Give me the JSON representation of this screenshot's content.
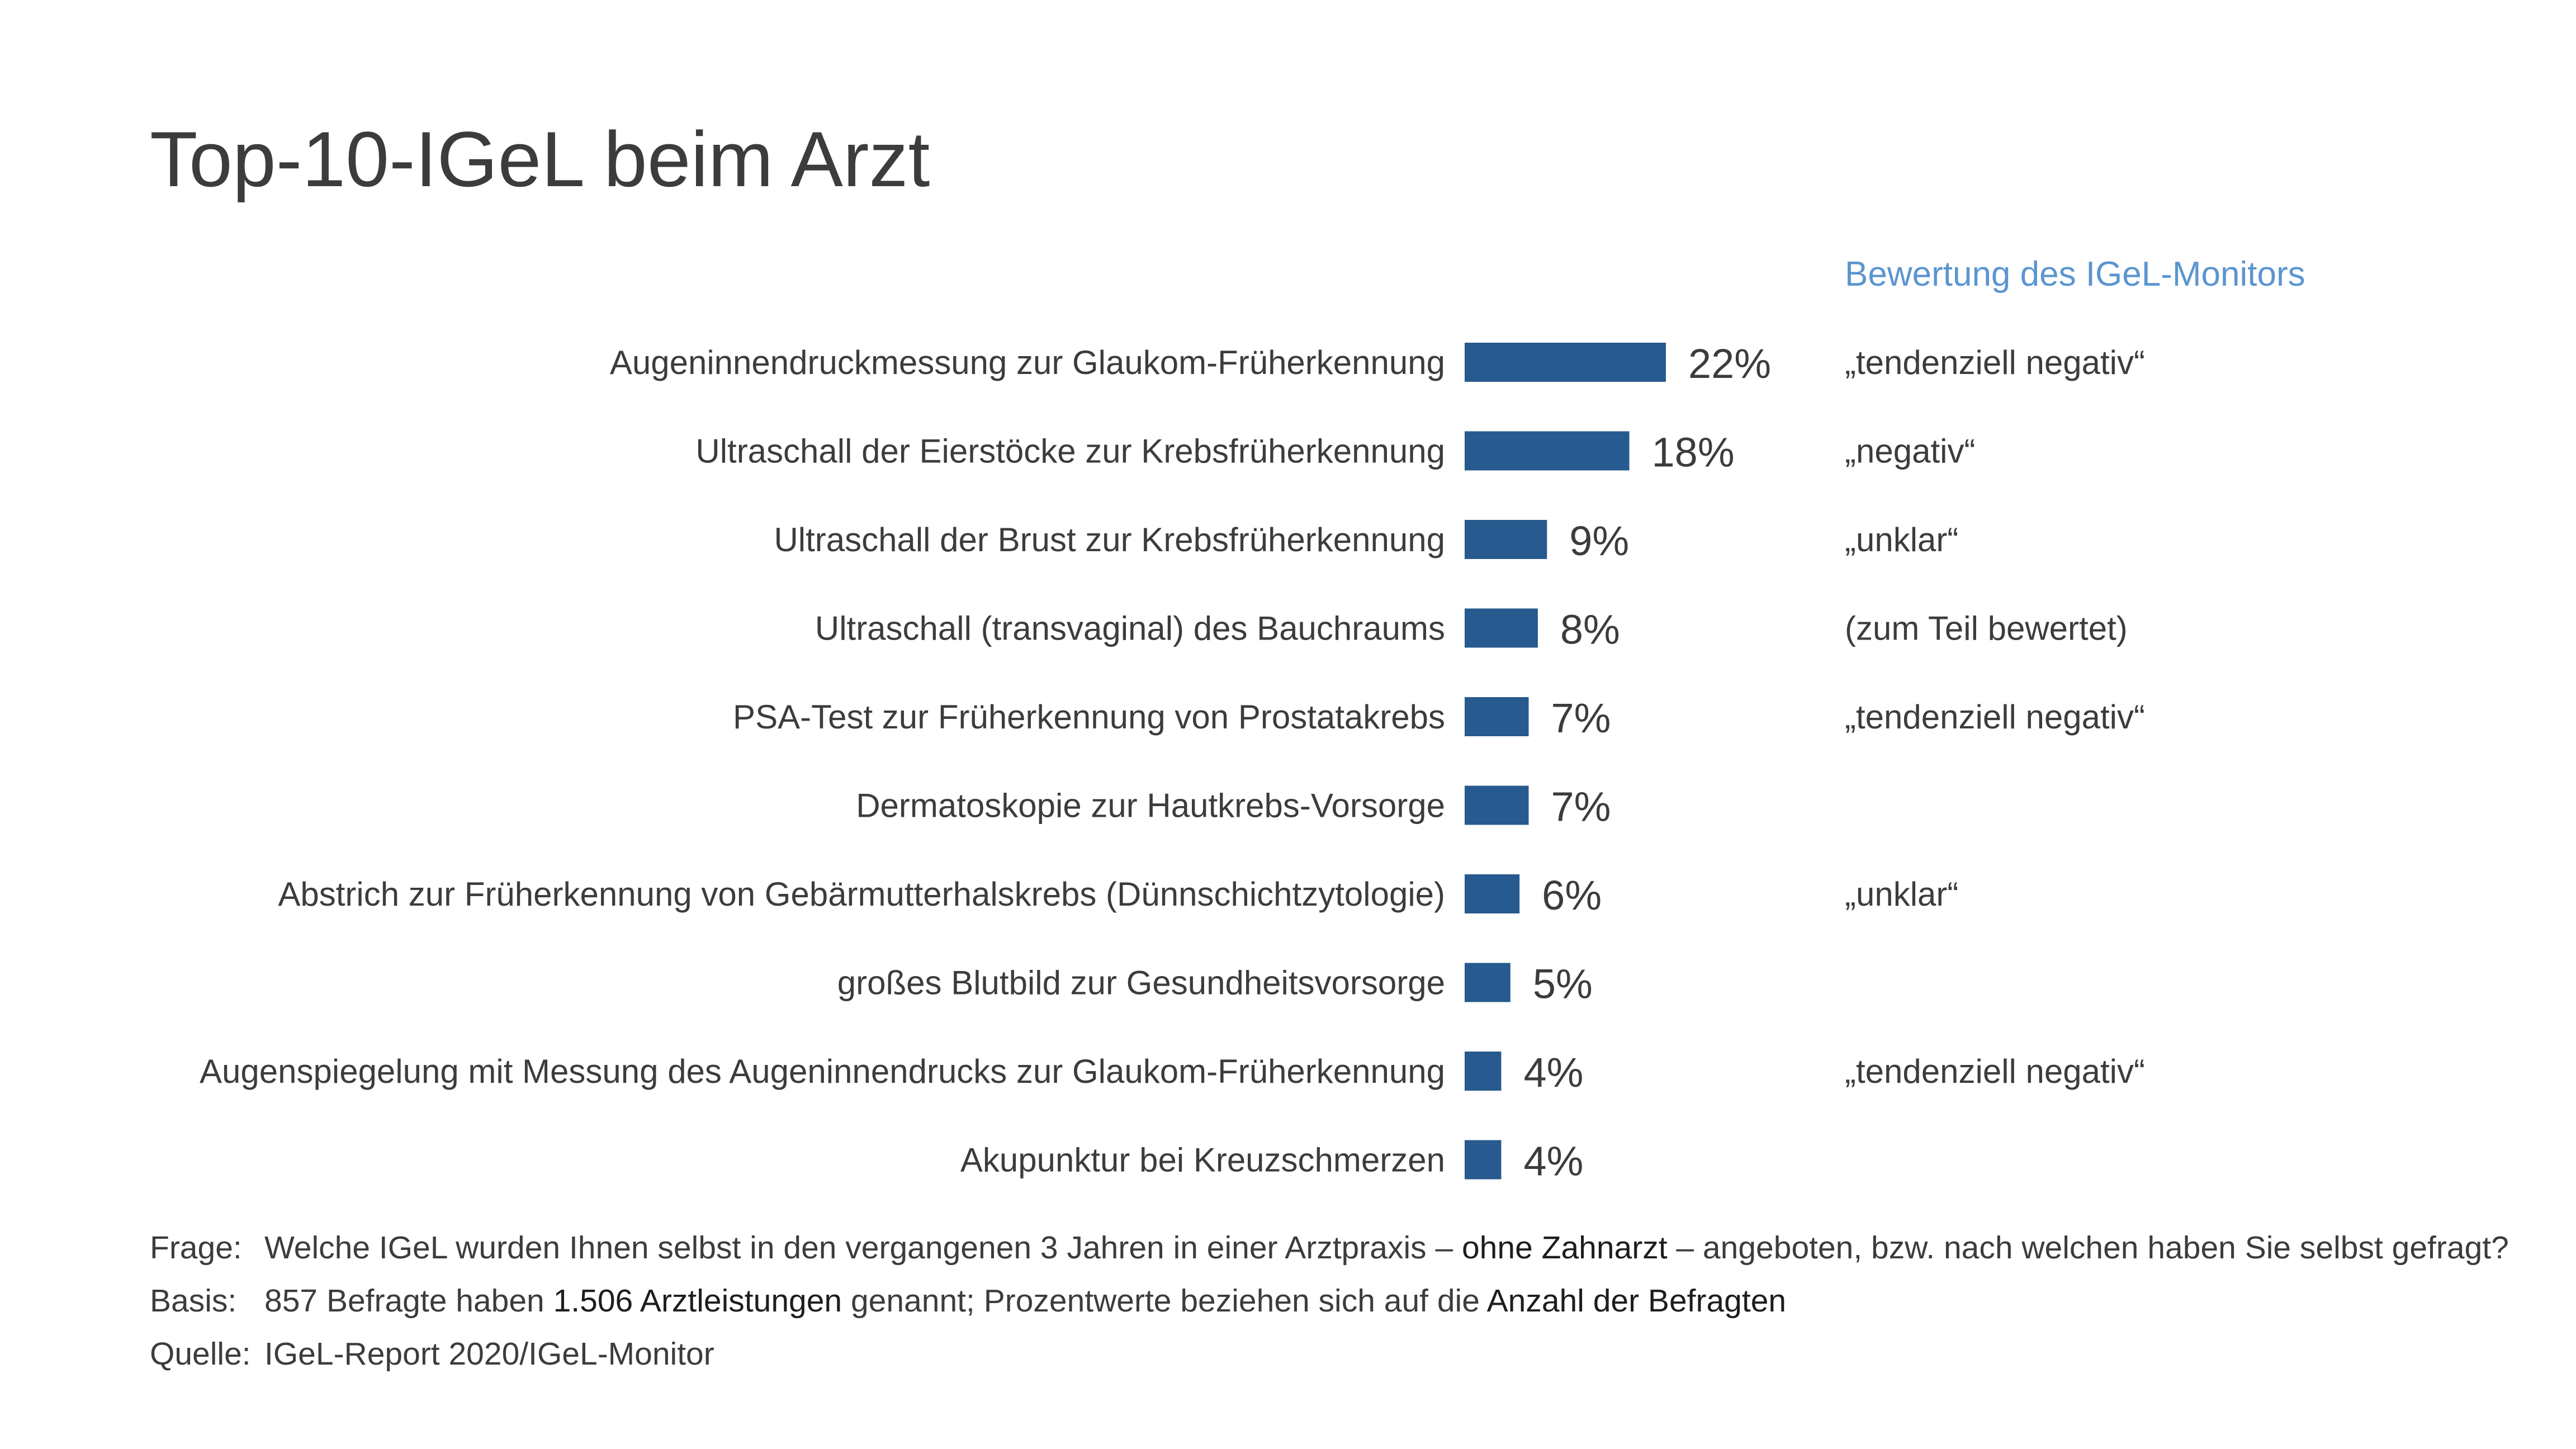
{
  "chart_data": {
    "type": "bar",
    "orientation": "horizontal",
    "title": "Top-10-IGeL beim Arzt",
    "categories": [
      "Augeninnendruckmessung zur Glaukom-Früherkennung",
      "Ultraschall der Eierstöcke zur Krebsfrüherkennung",
      "Ultraschall der Brust zur Krebsfrüherkennung",
      "Ultraschall (transvaginal) des Bauchraums",
      "PSA-Test zur Früherkennung von Prostatakrebs",
      "Dermatoskopie zur Hautkrebs-Vorsorge",
      "Abstrich zur Früherkennung von Gebärmutterhalskrebs (Dünnschichtzytologie)",
      "großes Blutbild zur Gesundheitsvorsorge",
      "Augenspiegelung mit Messung des Augeninnendrucks zur Glaukom-Früherkennung",
      "Akupunktur bei Kreuzschmerzen"
    ],
    "values": [
      22,
      18,
      9,
      8,
      7,
      7,
      6,
      5,
      4,
      4
    ],
    "value_labels": [
      "22%",
      "18%",
      "9%",
      "8%",
      "7%",
      "7%",
      "6%",
      "5%",
      "4%",
      "4%"
    ],
    "unit": "%",
    "xlim": [
      0,
      22
    ],
    "grid": false,
    "bar_color": "#275a8e",
    "rating_header": "Bewertung des IGeL-Monitors",
    "ratings": [
      "„tendenziell negativ“",
      "„negativ“",
      "„unklar“",
      "(zum Teil bewertet)",
      "„tendenziell negativ“",
      "",
      "„unklar“",
      "",
      "„tendenziell negativ“",
      ""
    ]
  },
  "footnotes": {
    "frage_key": "Frage:",
    "frage_before": "Welche IGeL wurden Ihnen selbst in den vergangenen 3 Jahren in einer Arztpraxis – ",
    "frage_strong": "ohne Zahnarzt",
    "frage_after": " – angeboten, bzw. nach welchen haben Sie selbst gefragt?",
    "basis_key": "Basis:",
    "basis_before": "857 Befragte haben ",
    "basis_strong1": "1.506 Arztleistungen",
    "basis_mid": " genannt; Prozentwerte beziehen sich auf die ",
    "basis_strong2": "Anzahl der Befragten",
    "quelle_key": "Quelle:",
    "quelle_text": "IGeL-Report 2020/IGeL-Monitor"
  },
  "colors": {
    "accent_header": "#5b95cf",
    "text": "#3c3c3b"
  }
}
